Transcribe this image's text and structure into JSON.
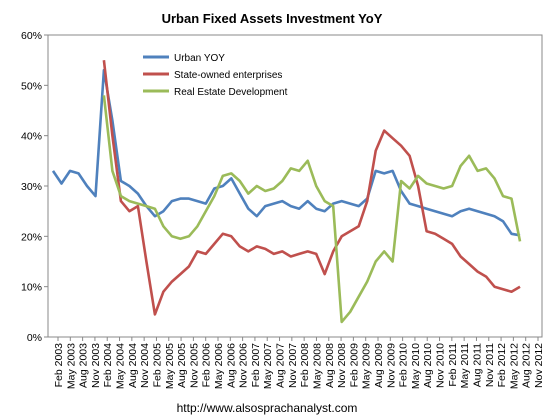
{
  "chart_data": {
    "type": "line",
    "title": "Urban Fixed Assets Investment YoY",
    "source": "http://www.alsosprachanalyst.com",
    "xlabel": "",
    "ylabel": "",
    "ylim": [
      0,
      60
    ],
    "y_ticks": [
      "0%",
      "10%",
      "20%",
      "30%",
      "40%",
      "50%",
      "60%"
    ],
    "x_tick_labels": [
      "Feb 2003",
      "May 2003",
      "Aug 2003",
      "Nov 2003",
      "Feb 2004",
      "May 2004",
      "Aug 2004",
      "Nov 2004",
      "Feb 2005",
      "May 2005",
      "Aug 2005",
      "Nov 2005",
      "Feb 2006",
      "May 2006",
      "Aug 2006",
      "Nov 2006",
      "Feb 2007",
      "May 2007",
      "Aug 2007",
      "Nov 2007",
      "Feb 2008",
      "May 2008",
      "Aug 2008",
      "Nov 2008",
      "Feb 2009",
      "May 2009",
      "Aug 2009",
      "Nov 2009",
      "Feb 2010",
      "May 2010",
      "Aug 2010",
      "Nov 2010",
      "Feb 2011",
      "May 2011",
      "Aug 2011",
      "Nov 2011",
      "Feb 2012",
      "May 2012",
      "Aug 2012",
      "Nov 2012"
    ],
    "legend_position": "top-left",
    "grid": false,
    "series": [
      {
        "name": "Urban YOY",
        "color": "#4F81BD",
        "points": [
          [
            0,
            33.0
          ],
          [
            1,
            30.5
          ],
          [
            2,
            33.0
          ],
          [
            3,
            32.5
          ],
          [
            4,
            30.0
          ],
          [
            5,
            28.0
          ],
          [
            6,
            53.0
          ],
          [
            7,
            43.0
          ],
          [
            8,
            31.0
          ],
          [
            9,
            30.0
          ],
          [
            10,
            28.5
          ],
          [
            11,
            26.0
          ],
          [
            12,
            24.0
          ],
          [
            13,
            25.0
          ],
          [
            14,
            27.0
          ],
          [
            15,
            27.5
          ],
          [
            16,
            27.5
          ],
          [
            17,
            27.0
          ],
          [
            18,
            26.5
          ],
          [
            19,
            29.5
          ],
          [
            20,
            30.0
          ],
          [
            21,
            31.5
          ],
          [
            22,
            28.5
          ],
          [
            23,
            25.5
          ],
          [
            24,
            24.0
          ],
          [
            25,
            26.0
          ],
          [
            26,
            26.5
          ],
          [
            27,
            27.0
          ],
          [
            28,
            26.0
          ],
          [
            29,
            25.5
          ],
          [
            30,
            27.0
          ],
          [
            31,
            25.5
          ],
          [
            32,
            25.0
          ],
          [
            33,
            26.5
          ],
          [
            34,
            27.0
          ],
          [
            35,
            26.5
          ],
          [
            36,
            26.0
          ],
          [
            37,
            27.5
          ],
          [
            38,
            33.0
          ],
          [
            39,
            32.5
          ],
          [
            40,
            33.0
          ],
          [
            41,
            29.0
          ],
          [
            42,
            26.5
          ],
          [
            43,
            26.0
          ],
          [
            44,
            25.5
          ],
          [
            45,
            25.0
          ],
          [
            46,
            24.5
          ],
          [
            47,
            24.0
          ],
          [
            48,
            25.0
          ],
          [
            49,
            25.5
          ],
          [
            50,
            25.0
          ],
          [
            51,
            24.5
          ],
          [
            52,
            24.0
          ],
          [
            53,
            23.0
          ],
          [
            54,
            20.5
          ],
          [
            55,
            20.2
          ]
        ]
      },
      {
        "name": "State-owned enterprises",
        "color": "#C0504D",
        "points": [
          [
            6,
            55.0
          ],
          [
            7,
            40.0
          ],
          [
            8,
            27.0
          ],
          [
            9,
            25.0
          ],
          [
            10,
            26.0
          ],
          [
            11,
            15.0
          ],
          [
            12,
            4.5
          ],
          [
            13,
            9.0
          ],
          [
            14,
            11.0
          ],
          [
            15,
            12.5
          ],
          [
            16,
            14.0
          ],
          [
            17,
            17.0
          ],
          [
            18,
            16.5
          ],
          [
            19,
            18.5
          ],
          [
            20,
            20.5
          ],
          [
            21,
            20.0
          ],
          [
            22,
            18.0
          ],
          [
            23,
            17.0
          ],
          [
            24,
            18.0
          ],
          [
            25,
            17.5
          ],
          [
            26,
            16.5
          ],
          [
            27,
            17.0
          ],
          [
            28,
            16.0
          ],
          [
            29,
            16.5
          ],
          [
            30,
            17.0
          ],
          [
            31,
            16.5
          ],
          [
            32,
            12.5
          ],
          [
            33,
            17.0
          ],
          [
            34,
            20.0
          ],
          [
            35,
            21.0
          ],
          [
            36,
            22.0
          ],
          [
            37,
            27.0
          ],
          [
            38,
            37.0
          ],
          [
            39,
            41.0
          ],
          [
            40,
            39.5
          ],
          [
            41,
            38.0
          ],
          [
            42,
            36.0
          ],
          [
            43,
            30.0
          ],
          [
            44,
            21.0
          ],
          [
            45,
            20.5
          ],
          [
            46,
            19.5
          ],
          [
            47,
            18.5
          ],
          [
            48,
            16.0
          ],
          [
            49,
            14.5
          ],
          [
            50,
            13.0
          ],
          [
            51,
            12.0
          ],
          [
            52,
            10.0
          ],
          [
            53,
            9.5
          ],
          [
            54,
            9.0
          ],
          [
            55,
            10.0
          ]
        ]
      },
      {
        "name": "Real Estate Development",
        "color": "#9BBB59",
        "points": [
          [
            6,
            48.0
          ],
          [
            7,
            33.0
          ],
          [
            8,
            28.0
          ],
          [
            9,
            27.0
          ],
          [
            10,
            26.5
          ],
          [
            11,
            26.0
          ],
          [
            12,
            25.5
          ],
          [
            13,
            22.0
          ],
          [
            14,
            20.0
          ],
          [
            15,
            19.5
          ],
          [
            16,
            20.0
          ],
          [
            17,
            22.0
          ],
          [
            18,
            25.0
          ],
          [
            19,
            28.0
          ],
          [
            20,
            32.0
          ],
          [
            21,
            32.5
          ],
          [
            22,
            31.0
          ],
          [
            23,
            28.5
          ],
          [
            24,
            30.0
          ],
          [
            25,
            29.0
          ],
          [
            26,
            29.5
          ],
          [
            27,
            31.0
          ],
          [
            28,
            33.5
          ],
          [
            29,
            33.0
          ],
          [
            30,
            35.0
          ],
          [
            31,
            30.0
          ],
          [
            32,
            27.0
          ],
          [
            33,
            26.0
          ],
          [
            34,
            3.0
          ],
          [
            35,
            5.0
          ],
          [
            36,
            8.0
          ],
          [
            37,
            11.0
          ],
          [
            38,
            15.0
          ],
          [
            39,
            17.0
          ],
          [
            40,
            15.0
          ],
          [
            41,
            31.0
          ],
          [
            42,
            29.5
          ],
          [
            43,
            32.0
          ],
          [
            44,
            30.5
          ],
          [
            45,
            30.0
          ],
          [
            46,
            29.5
          ],
          [
            47,
            30.0
          ],
          [
            48,
            34.0
          ],
          [
            49,
            36.0
          ],
          [
            50,
            33.0
          ],
          [
            51,
            33.5
          ],
          [
            52,
            31.5
          ],
          [
            53,
            28.0
          ],
          [
            54,
            27.5
          ],
          [
            55,
            19.0
          ]
        ]
      }
    ]
  }
}
